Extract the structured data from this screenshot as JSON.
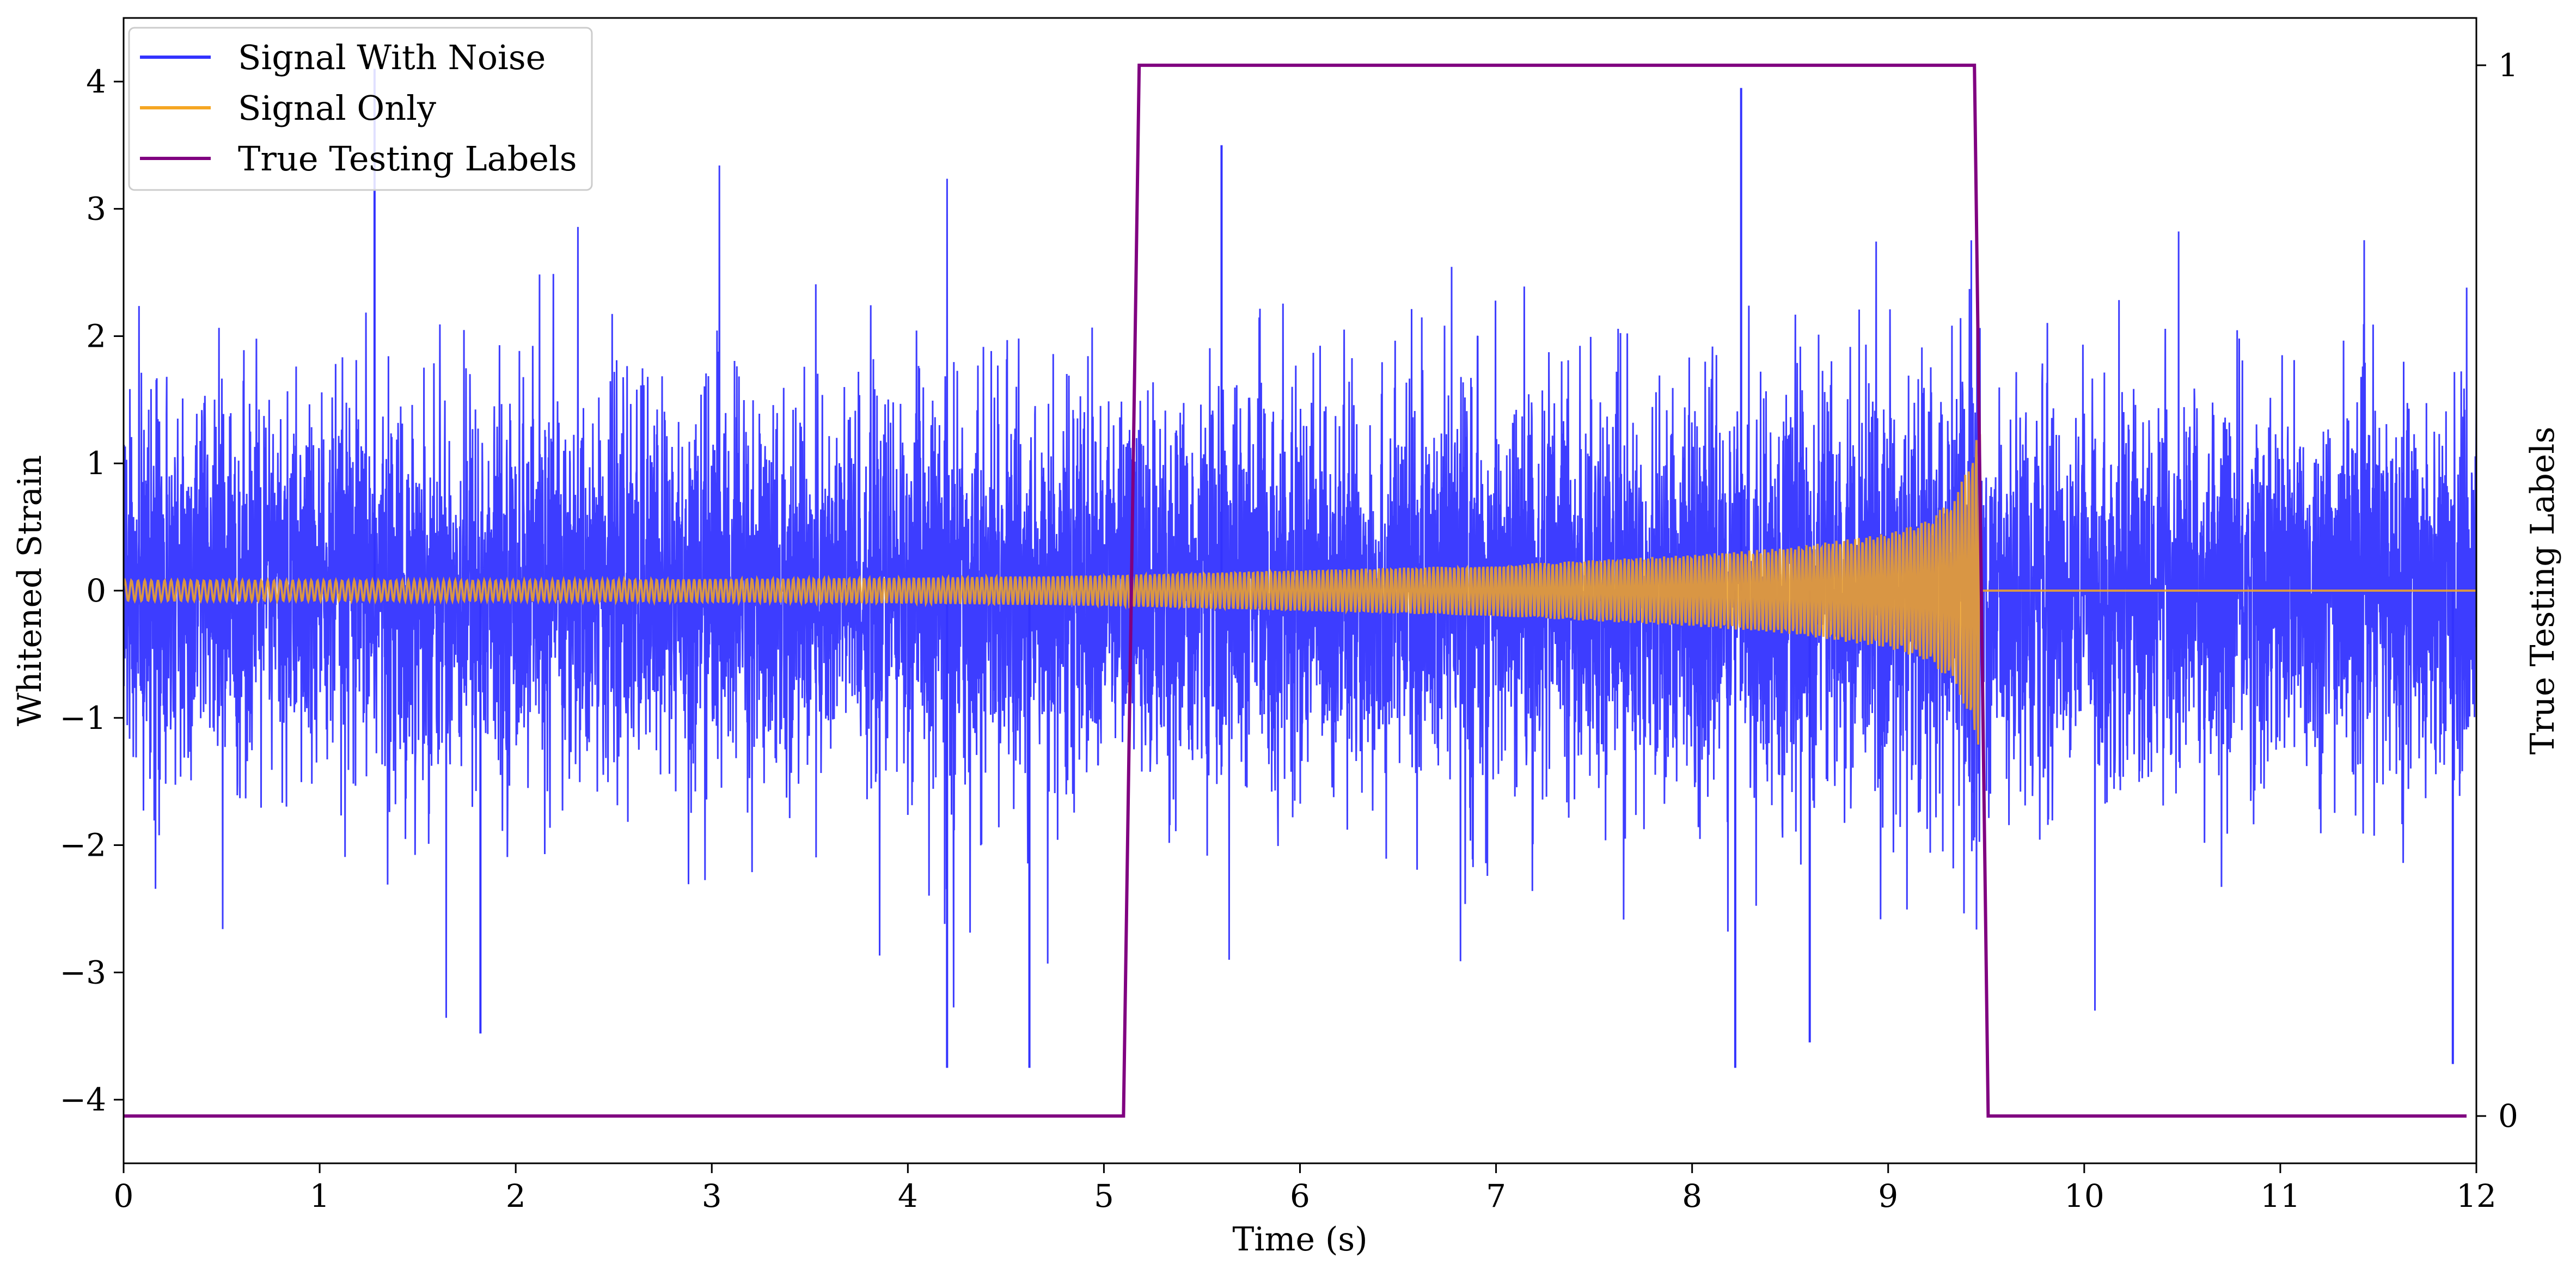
{
  "chart_data": {
    "type": "line",
    "title": "",
    "xlabel": "Time (s)",
    "ylabel": "Whitened Strain",
    "y2label": "True Testing Labels",
    "xlim": [
      0,
      12
    ],
    "ylim": [
      -4.5,
      4.5
    ],
    "y2lim": [
      -0.045,
      1.045
    ],
    "x_ticks": [
      0,
      1,
      2,
      3,
      4,
      5,
      6,
      7,
      8,
      9,
      10,
      11,
      12
    ],
    "y_ticks": [
      -4,
      -3,
      -2,
      -1,
      0,
      1,
      2,
      3,
      4
    ],
    "y2_ticks": [
      0,
      1
    ],
    "grid": false,
    "legend": {
      "placement": "top-left",
      "entries": [
        {
          "name": "Signal With Noise",
          "color": "#3333ff"
        },
        {
          "name": "Signal Only",
          "color": "#f5a623"
        },
        {
          "name": "True Testing Labels",
          "color": "#800080"
        }
      ]
    },
    "series": [
      {
        "name": "Signal With Noise",
        "axis": "left",
        "color": "#3333ff",
        "description_values": {
          "typical_range": [
            -2.0,
            2.0
          ],
          "peak_max": 4.1,
          "peak_min": -3.75
        },
        "peaks": [
          {
            "x": 1.28,
            "y": 4.1
          },
          {
            "x": 8.25,
            "y": 3.95
          },
          {
            "x": 5.6,
            "y": 3.5
          },
          {
            "x": 4.2,
            "y": -3.75
          },
          {
            "x": 4.62,
            "y": -3.75
          },
          {
            "x": 8.22,
            "y": -3.75
          },
          {
            "x": 1.82,
            "y": -3.48
          },
          {
            "x": 11.88,
            "y": -3.72
          },
          {
            "x": 8.6,
            "y": -3.55
          }
        ]
      },
      {
        "name": "Signal Only",
        "axis": "left",
        "color": "#f5a623",
        "envelope": [
          {
            "x": 0.0,
            "amp": 0.08
          },
          {
            "x": 2.0,
            "amp": 0.08
          },
          {
            "x": 4.0,
            "amp": 0.1
          },
          {
            "x": 5.0,
            "amp": 0.12
          },
          {
            "x": 6.0,
            "amp": 0.16
          },
          {
            "x": 7.0,
            "amp": 0.2
          },
          {
            "x": 8.0,
            "amp": 0.28
          },
          {
            "x": 8.5,
            "amp": 0.34
          },
          {
            "x": 9.0,
            "amp": 0.45
          },
          {
            "x": 9.2,
            "amp": 0.55
          },
          {
            "x": 9.35,
            "amp": 0.75
          },
          {
            "x": 9.42,
            "amp": 1.05
          },
          {
            "x": 9.45,
            "amp": 1.25
          }
        ],
        "after_merger": {
          "x_from": 9.47,
          "value": 0.0
        }
      },
      {
        "name": "True Testing Labels",
        "axis": "right",
        "color": "#800080",
        "x": [
          0.0,
          5.1,
          5.18,
          9.44,
          9.51,
          11.95
        ],
        "values": [
          0,
          0,
          1,
          1,
          0,
          0
        ]
      }
    ]
  }
}
